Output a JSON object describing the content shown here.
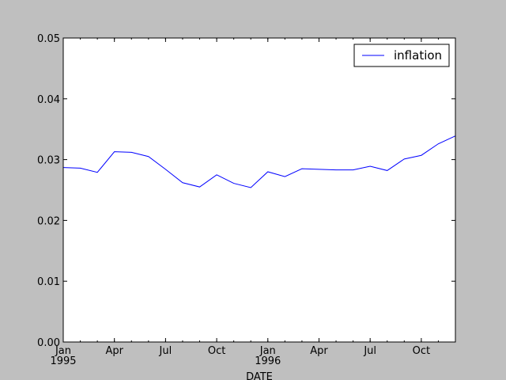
{
  "chart_data": {
    "type": "line",
    "title": "",
    "xlabel": "DATE",
    "ylabel": "",
    "x": [
      "1995-01",
      "1995-02",
      "1995-03",
      "1995-04",
      "1995-05",
      "1995-06",
      "1995-07",
      "1995-08",
      "1995-09",
      "1995-10",
      "1995-11",
      "1995-12",
      "1996-01",
      "1996-02",
      "1996-03",
      "1996-04",
      "1996-05",
      "1996-06",
      "1996-07",
      "1996-08",
      "1996-09",
      "1996-10",
      "1996-11",
      "1996-12"
    ],
    "series": [
      {
        "name": "inflation",
        "color": "#0000ff",
        "values": [
          0.0287,
          0.0286,
          0.0279,
          0.0313,
          0.0312,
          0.0305,
          0.0284,
          0.0262,
          0.0255,
          0.0275,
          0.0261,
          0.0254,
          0.028,
          0.0272,
          0.0285,
          0.0284,
          0.0283,
          0.0283,
          0.0289,
          0.0282,
          0.0301,
          0.0307,
          0.0326,
          0.0339
        ]
      }
    ],
    "ylim": [
      0,
      0.05
    ],
    "yticks": [
      "0.00",
      "0.01",
      "0.02",
      "0.03",
      "0.04",
      "0.05"
    ],
    "xticks": [
      {
        "at": "1995-01",
        "label": "Jan",
        "year": "1995"
      },
      {
        "at": "1995-04",
        "label": "Apr",
        "year": ""
      },
      {
        "at": "1995-07",
        "label": "Jul",
        "year": ""
      },
      {
        "at": "1995-10",
        "label": "Oct",
        "year": ""
      },
      {
        "at": "1996-01",
        "label": "Jan",
        "year": "1996"
      },
      {
        "at": "1996-04",
        "label": "Apr",
        "year": ""
      },
      {
        "at": "1996-07",
        "label": "Jul",
        "year": ""
      },
      {
        "at": "1996-10",
        "label": "Oct",
        "year": ""
      }
    ],
    "legend": "top-right",
    "grid": false,
    "background": "#bfbfbf",
    "plot_background": "#ffffff"
  }
}
